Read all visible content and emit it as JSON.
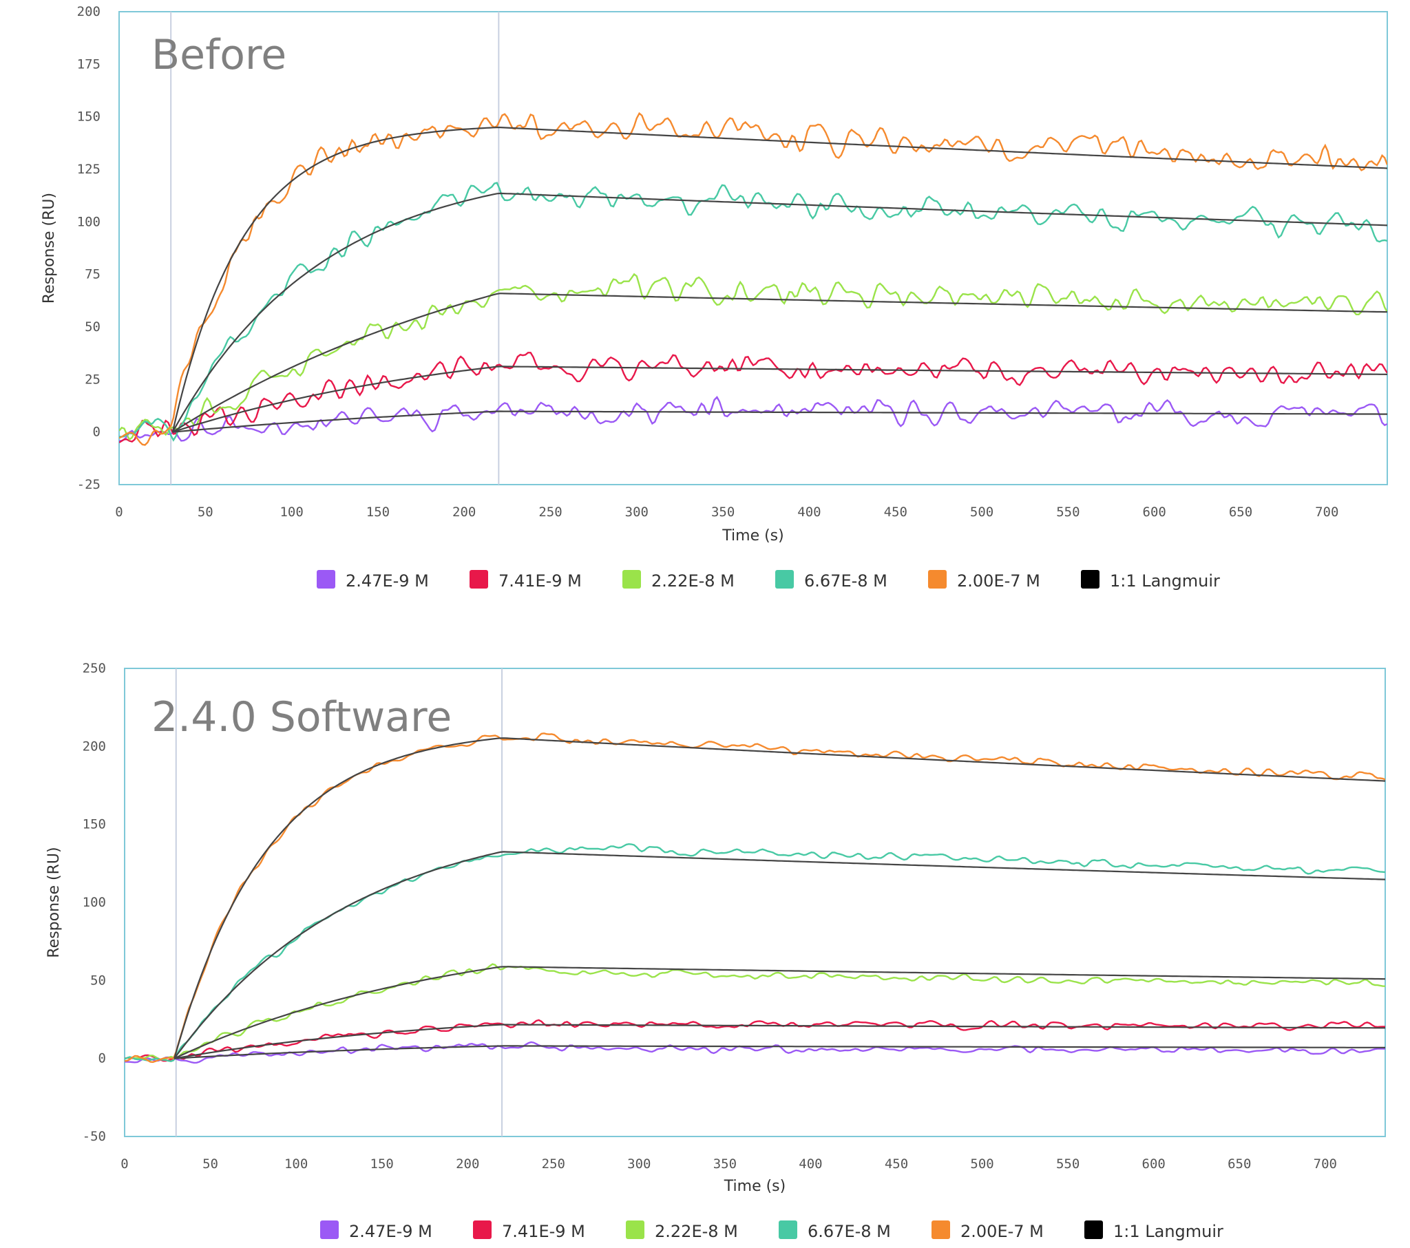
{
  "colors": {
    "frame": "#7ec8d8",
    "marker": "#c8d0e0",
    "tick": "#555555",
    "fit": "#444444"
  },
  "chart_data": [
    {
      "type": "line",
      "title": "Before",
      "xlabel": "Time (s)",
      "ylabel": "Response (RU)",
      "xlim": [
        0,
        735
      ],
      "ylim": [
        -25,
        200
      ],
      "xticks": [
        0,
        50,
        100,
        150,
        200,
        250,
        300,
        350,
        400,
        450,
        500,
        550,
        600,
        650,
        700
      ],
      "yticks": [
        -25,
        0,
        25,
        50,
        75,
        100,
        125,
        150,
        175,
        200
      ],
      "markers": [
        30,
        220
      ],
      "grid": false,
      "legend_position": "bottom",
      "association_start": 31,
      "dissociation_start": 220,
      "end_time": 735,
      "noise": 4.5,
      "series": [
        {
          "name": "2.47E-9 M",
          "color": "#9b59f5",
          "kobs": 0.004,
          "rmax": 18.6,
          "kd": 0.00028,
          "offset": 0
        },
        {
          "name": "7.41E-9 M",
          "color": "#e8184a",
          "kobs": 0.0055,
          "rmax": 48.3,
          "kd": 0.00025,
          "offset": 0
        },
        {
          "name": "2.22E-8 M",
          "color": "#9ae34a",
          "kobs": 0.0045,
          "rmax": 115.2,
          "kd": 0.00028,
          "offset": 3
        },
        {
          "name": "6.67E-8 M",
          "color": "#48c9a4",
          "kobs": 0.0115,
          "rmax": 128.2,
          "kd": 0.00028,
          "offset": 0
        },
        {
          "name": "2.00E-7 M",
          "color": "#f58a2e",
          "kobs": 0.0245,
          "rmax": 146.4,
          "kd": 0.00028,
          "offset": 3
        }
      ],
      "fit": {
        "name": "1:1 Langmuir",
        "color": "#000000"
      }
    },
    {
      "type": "line",
      "title": "2.4.0 Software",
      "xlabel": "Time (s)",
      "ylabel": "Response (RU)",
      "xlim": [
        0,
        735
      ],
      "ylim": [
        -50,
        250
      ],
      "xticks": [
        0,
        50,
        100,
        150,
        200,
        250,
        300,
        350,
        400,
        450,
        500,
        550,
        600,
        650,
        700
      ],
      "yticks": [
        -50,
        0,
        50,
        100,
        150,
        200,
        250
      ],
      "markers": [
        30,
        220
      ],
      "grid": false,
      "legend_position": "bottom",
      "association_start": 29,
      "dissociation_start": 220,
      "end_time": 735,
      "noise": 1.8,
      "series": [
        {
          "name": "2.47E-9 M",
          "color": "#9b59f5",
          "kobs": 0.005,
          "rmax": 13.1,
          "kd": 0.00028,
          "offset": -2
        },
        {
          "name": "7.41E-9 M",
          "color": "#e8184a",
          "kobs": 0.006,
          "rmax": 31.8,
          "kd": 0.0002,
          "offset": 1
        },
        {
          "name": "2.22E-8 M",
          "color": "#9ae34a",
          "kobs": 0.006,
          "rmax": 86.3,
          "kd": 0.00028,
          "offset": -3
        },
        {
          "name": "6.67E-8 M",
          "color": "#48c9a4",
          "kobs": 0.0095,
          "rmax": 158.3,
          "kd": 0.00028,
          "offset": 5
        },
        {
          "name": "2.00E-7 M",
          "color": "#f58a2e",
          "kobs": 0.0185,
          "rmax": 211.6,
          "kd": 0.00028,
          "offset": 2
        }
      ],
      "fit": {
        "name": "1:1 Langmuir",
        "color": "#000000"
      }
    }
  ]
}
